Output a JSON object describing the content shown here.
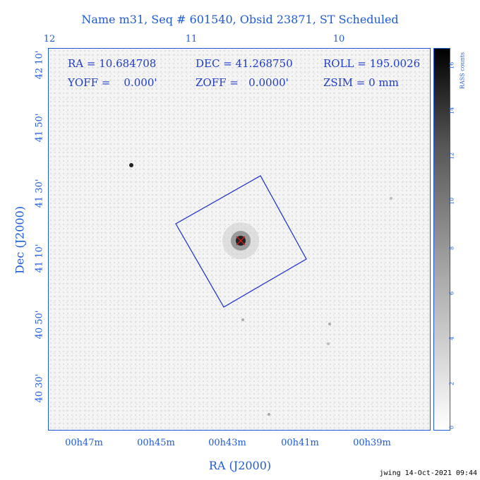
{
  "title": "Name m31, Seq # 601540, Obsid 23871, ST Scheduled",
  "axes": {
    "xlabel": "RA (J2000)",
    "ylabel": "Dec (J2000)",
    "top_ticks": [
      "12",
      "11",
      "10"
    ],
    "bottom_ticks": [
      "00h47m",
      "00h45m",
      "00h43m",
      "00h41m",
      "00h39m"
    ],
    "left_ticks": [
      "42 10'",
      "41 50'",
      "41 30'",
      "41 10'",
      "40 50'",
      "40 30'"
    ]
  },
  "info": {
    "ra": "RA = 10.684708",
    "dec": "DEC = 41.268750",
    "roll": "ROLL = 195.0026",
    "yoff": "YOFF =    0.000'",
    "zoff": "ZOFF =   0.0000'",
    "zsim": "ZSIM = 0 mm"
  },
  "colorbar": {
    "label": "RASS counts",
    "ticks": [
      "0",
      "2",
      "4",
      "6",
      "8",
      "10",
      "12",
      "14",
      "16"
    ]
  },
  "footer": "jwing 14-Oct-2021 09:44",
  "colors": {
    "accent": "#1e5ad8",
    "text_overlay": "#1e3cc8",
    "footprint": "#1a2bd0",
    "target_marker": "#d01a1a"
  }
}
